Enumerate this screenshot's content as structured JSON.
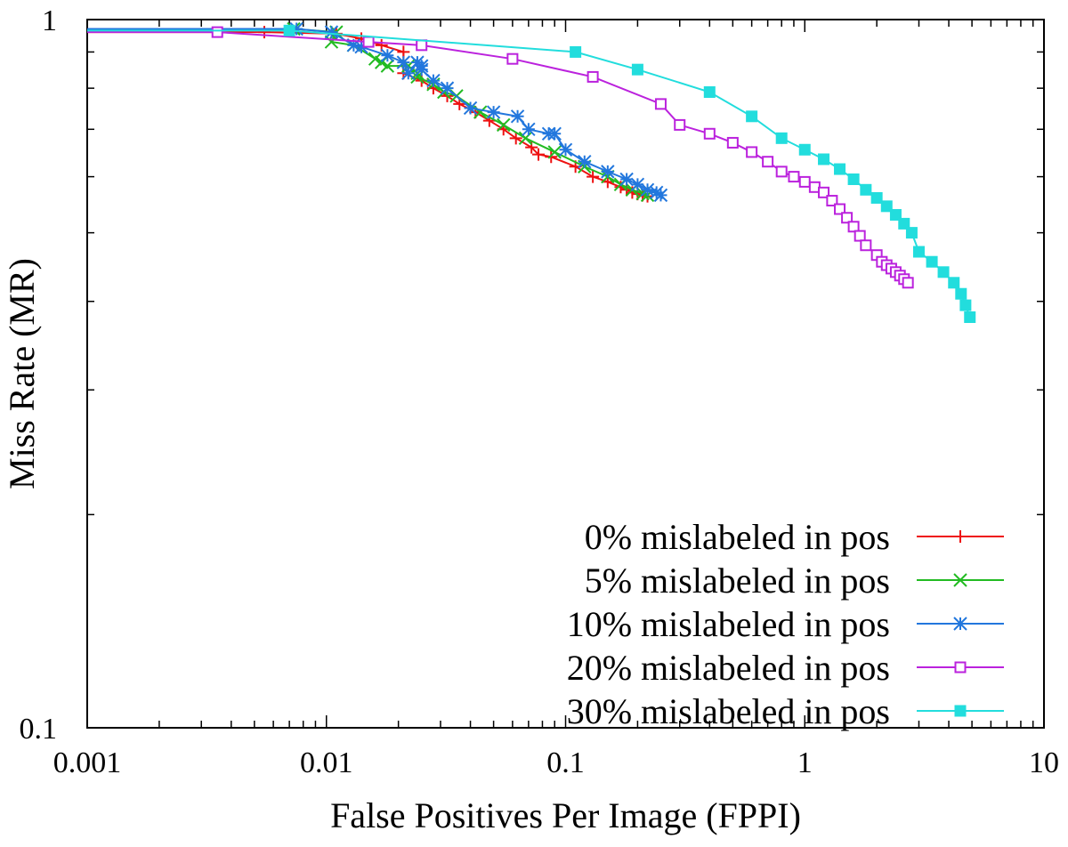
{
  "chart_data": {
    "type": "line",
    "title": "",
    "xlabel": "False Positives Per Image (FPPI)",
    "ylabel": "Miss Rate (MR)",
    "xscale": "log",
    "yscale": "log",
    "xlim": [
      0.001,
      10
    ],
    "ylim": [
      0.1,
      1
    ],
    "x_ticks": [
      {
        "value": 0.001,
        "label": "0.001"
      },
      {
        "value": 0.01,
        "label": "0.01"
      },
      {
        "value": 0.1,
        "label": "0.1"
      },
      {
        "value": 1,
        "label": "1"
      },
      {
        "value": 10,
        "label": "10"
      }
    ],
    "y_ticks": [
      {
        "value": 0.1,
        "label": "0.1"
      },
      {
        "value": 1,
        "label": "1"
      }
    ],
    "grid": false,
    "legend_position": "bottom-right",
    "series": [
      {
        "name": "0% mislabeled in pos",
        "color": "#ee1111",
        "marker": "plus",
        "x": [
          0.0007,
          0.0055,
          0.011,
          0.014,
          0.017,
          0.021,
          0.021,
          0.021,
          0.025,
          0.028,
          0.032,
          0.036,
          0.042,
          0.048,
          0.055,
          0.062,
          0.072,
          0.077,
          0.087,
          0.11,
          0.13,
          0.15,
          0.17,
          0.18,
          0.19,
          0.2,
          0.21,
          0.22
        ],
        "y": [
          0.96,
          0.96,
          0.955,
          0.94,
          0.92,
          0.9,
          0.86,
          0.84,
          0.82,
          0.8,
          0.78,
          0.76,
          0.74,
          0.72,
          0.7,
          0.68,
          0.66,
          0.645,
          0.64,
          0.62,
          0.6,
          0.59,
          0.58,
          0.575,
          0.57,
          0.567,
          0.565,
          0.563
        ]
      },
      {
        "name": "5% mislabeled in pos",
        "color": "#22bb22",
        "marker": "x",
        "x": [
          0.0007,
          0.0073,
          0.011,
          0.0105,
          0.013,
          0.016,
          0.017,
          0.018,
          0.022,
          0.024,
          0.024,
          0.028,
          0.031,
          0.035,
          0.044,
          0.055,
          0.068,
          0.09,
          0.12,
          0.15,
          0.17,
          0.19,
          0.21,
          0.22
        ],
        "y": [
          0.97,
          0.97,
          0.96,
          0.93,
          0.92,
          0.88,
          0.87,
          0.86,
          0.86,
          0.84,
          0.83,
          0.81,
          0.79,
          0.78,
          0.74,
          0.71,
          0.68,
          0.65,
          0.62,
          0.6,
          0.585,
          0.575,
          0.568,
          0.565
        ]
      },
      {
        "name": "10% mislabeled in pos",
        "color": "#2277dd",
        "marker": "asterisk",
        "x": [
          0.0007,
          0.0075,
          0.0105,
          0.013,
          0.014,
          0.018,
          0.021,
          0.022,
          0.024,
          0.025,
          0.025,
          0.028,
          0.032,
          0.04,
          0.05,
          0.063,
          0.07,
          0.085,
          0.09,
          0.1,
          0.12,
          0.15,
          0.18,
          0.2,
          0.22,
          0.24,
          0.25
        ],
        "y": [
          0.97,
          0.97,
          0.96,
          0.92,
          0.915,
          0.89,
          0.87,
          0.84,
          0.87,
          0.86,
          0.85,
          0.82,
          0.8,
          0.75,
          0.74,
          0.73,
          0.7,
          0.69,
          0.69,
          0.655,
          0.63,
          0.61,
          0.595,
          0.585,
          0.575,
          0.57,
          0.565
        ]
      },
      {
        "name": "20% mislabeled in pos",
        "color": "#bb22dd",
        "marker": "square-open",
        "x": [
          0.0007,
          0.0035,
          0.015,
          0.025,
          0.06,
          0.13,
          0.25,
          0.3,
          0.4,
          0.5,
          0.6,
          0.7,
          0.8,
          0.9,
          1.0,
          1.1,
          1.2,
          1.3,
          1.4,
          1.5,
          1.6,
          1.7,
          1.8,
          2.0,
          2.1,
          2.2,
          2.3,
          2.4,
          2.5,
          2.6,
          2.7
        ],
        "y": [
          0.96,
          0.96,
          0.93,
          0.92,
          0.88,
          0.83,
          0.76,
          0.71,
          0.69,
          0.67,
          0.65,
          0.63,
          0.61,
          0.6,
          0.59,
          0.58,
          0.57,
          0.555,
          0.54,
          0.525,
          0.51,
          0.495,
          0.48,
          0.465,
          0.455,
          0.45,
          0.445,
          0.44,
          0.435,
          0.43,
          0.425
        ]
      },
      {
        "name": "30% mislabeled in pos",
        "color": "#22dddd",
        "marker": "square-filled",
        "x": [
          0.0007,
          0.007,
          0.11,
          0.2,
          0.4,
          0.6,
          0.8,
          1.0,
          1.2,
          1.4,
          1.6,
          1.8,
          2.0,
          2.2,
          2.4,
          2.6,
          2.8,
          3.0,
          3.4,
          3.8,
          4.2,
          4.5,
          4.7,
          4.9
        ],
        "y": [
          0.965,
          0.965,
          0.9,
          0.85,
          0.79,
          0.73,
          0.68,
          0.655,
          0.635,
          0.615,
          0.595,
          0.575,
          0.56,
          0.545,
          0.53,
          0.515,
          0.5,
          0.47,
          0.455,
          0.44,
          0.425,
          0.41,
          0.395,
          0.38
        ]
      }
    ]
  }
}
